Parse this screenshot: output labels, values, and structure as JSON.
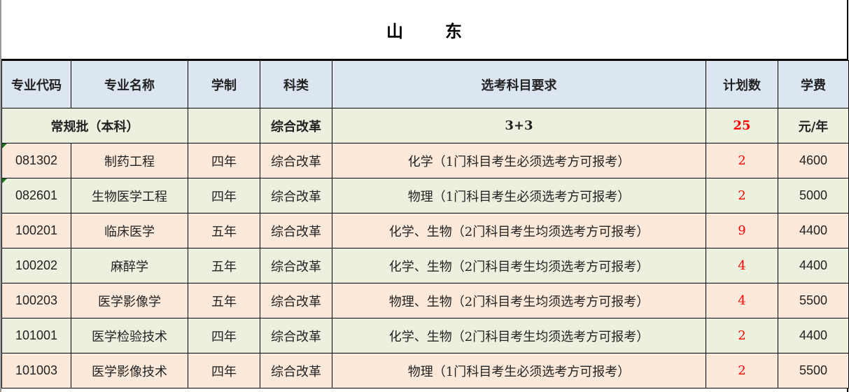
{
  "title": "山东",
  "headers": [
    "专业代码",
    "专业名称",
    "学制",
    "科类",
    "选考科目要求",
    "计划数",
    "学费"
  ],
  "batch": {
    "label": "常规批（本科）",
    "category": "综合改革",
    "subject": "3+3",
    "plan": "25",
    "fee_unit": "元/年"
  },
  "rows": [
    {
      "code": "081302",
      "name": "制药工程",
      "years": "四年",
      "category": "综合改革",
      "req": "化学（1门科目考生必须选考方可报考）",
      "plan": "2",
      "fee": "4600"
    },
    {
      "code": "082601",
      "name": "生物医学工程",
      "years": "四年",
      "category": "综合改革",
      "req": "物理（1门科目考生必须选考方可报考）",
      "plan": "2",
      "fee": "5000"
    },
    {
      "code": "100201",
      "name": "临床医学",
      "years": "五年",
      "category": "综合改革",
      "req": "化学、生物（2门科目考生均须选考方可报考）",
      "plan": "9",
      "fee": "4400"
    },
    {
      "code": "100202",
      "name": "麻醉学",
      "years": "五年",
      "category": "综合改革",
      "req": "化学、生物（2门科目考生均须选考方可报考）",
      "plan": "4",
      "fee": "4400"
    },
    {
      "code": "100203",
      "name": "医学影像学",
      "years": "五年",
      "category": "综合改革",
      "req": "物理、生物（2门科目考生均须选考方可报考）",
      "plan": "4",
      "fee": "5500"
    },
    {
      "code": "101001",
      "name": "医学检验技术",
      "years": "四年",
      "category": "综合改革",
      "req": "化学、生物（2门科目考生均须选考方可报考）",
      "plan": "2",
      "fee": "4400"
    },
    {
      "code": "101003",
      "name": "医学影像技术",
      "years": "四年",
      "category": "综合改革",
      "req": "物理（1门科目考生必须选考方可报考）",
      "plan": "2",
      "fee": "5500"
    }
  ],
  "colors": {
    "header_bg": "#DCE6F1",
    "green_bg": "#EBF1DE",
    "peach_bg": "#FDE9D9",
    "plan_text": "#FF0000"
  }
}
